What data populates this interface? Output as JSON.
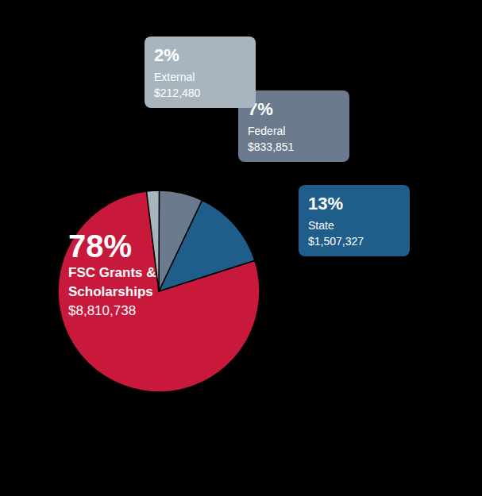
{
  "chart_data": {
    "type": "pie",
    "categories": [
      "FSC Grants & Scholarships",
      "State",
      "Federal",
      "External"
    ],
    "values": [
      78,
      13,
      7,
      2
    ],
    "value_labels": [
      "78%",
      "13%",
      "7%",
      "2%"
    ],
    "amounts": [
      "$8,810,738",
      "$1,507,327",
      "$833,851",
      "$212,480"
    ],
    "colors": [
      "#C8193C",
      "#1F5E8A",
      "#6B7B8D",
      "#A8B5BE"
    ],
    "data_labels": true
  }
}
